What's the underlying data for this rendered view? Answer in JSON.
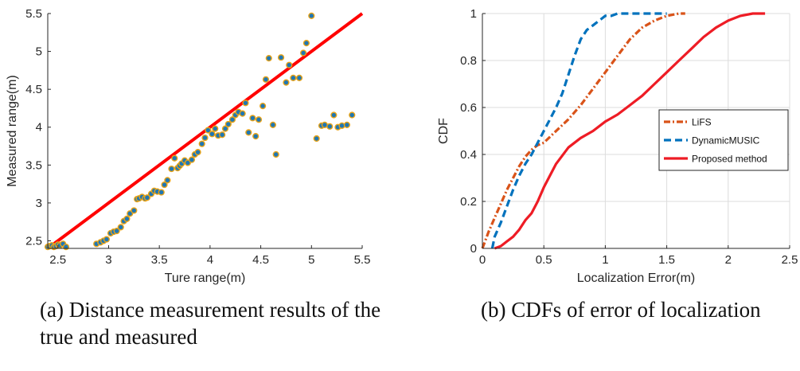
{
  "chart_data": [
    {
      "type": "scatter",
      "title": "",
      "xlabel": "Ture range(m)",
      "ylabel": "Measured range(m)",
      "xlim": [
        2.4,
        5.5
      ],
      "ylim": [
        2.4,
        5.5
      ],
      "xticks": [
        "2.5",
        "3",
        "3.5",
        "4",
        "4.5",
        "5",
        "5.5"
      ],
      "yticks": [
        "2.5",
        "3",
        "3.5",
        "4",
        "4.5",
        "5",
        "5.5"
      ],
      "grid": false,
      "colors": {
        "marker_fill": "#1f77b4",
        "marker_edge": "#e8a317",
        "line": "#ff0000"
      },
      "series": [
        {
          "kind": "points",
          "x": [
            2.4,
            2.42,
            2.44,
            2.46,
            2.48,
            2.5,
            2.52,
            2.55,
            2.58,
            2.88,
            2.92,
            2.95,
            2.98,
            3.02,
            3.05,
            3.08,
            3.12,
            3.15,
            3.18,
            3.21,
            3.25,
            3.28,
            3.3,
            3.33,
            3.36,
            3.38,
            3.42,
            3.45,
            3.48,
            3.52,
            3.55,
            3.58,
            3.62,
            3.65,
            3.68,
            3.7,
            3.72,
            3.75,
            3.78,
            3.82,
            3.85,
            3.88,
            3.92,
            3.95,
            3.98,
            4.02,
            4.05,
            4.08,
            4.12,
            4.15,
            4.18,
            4.22,
            4.25,
            4.28,
            4.32,
            4.35,
            4.38,
            4.42,
            4.45,
            4.48,
            4.52,
            4.55,
            4.58,
            4.62,
            4.65,
            4.7,
            4.75,
            4.78,
            4.82,
            4.88,
            4.92,
            4.95,
            5.0,
            5.05,
            5.1,
            5.13,
            5.18,
            5.22,
            5.26,
            5.3,
            5.35,
            5.4
          ],
          "y": [
            2.42,
            2.43,
            2.44,
            2.42,
            2.43,
            2.45,
            2.44,
            2.46,
            2.42,
            2.46,
            2.48,
            2.5,
            2.52,
            2.6,
            2.62,
            2.63,
            2.68,
            2.76,
            2.79,
            2.86,
            2.9,
            3.05,
            3.06,
            3.08,
            3.06,
            3.07,
            3.12,
            3.16,
            3.15,
            3.14,
            3.24,
            3.3,
            3.45,
            3.59,
            3.46,
            3.49,
            3.52,
            3.56,
            3.53,
            3.57,
            3.64,
            3.67,
            3.78,
            3.86,
            3.96,
            3.91,
            3.98,
            3.89,
            3.9,
            3.98,
            4.04,
            4.1,
            4.16,
            4.2,
            4.18,
            4.32,
            3.93,
            4.12,
            3.88,
            4.1,
            4.28,
            4.63,
            4.91,
            4.03,
            3.64,
            4.92,
            4.59,
            4.82,
            4.65,
            4.65,
            4.98,
            5.11,
            5.47,
            3.85,
            4.02,
            4.03,
            4.01,
            4.16,
            4.0,
            4.02,
            4.03,
            4.16
          ]
        },
        {
          "kind": "reference-line",
          "x": [
            2.4,
            5.5
          ],
          "y": [
            2.4,
            5.5
          ]
        }
      ]
    },
    {
      "type": "line",
      "title": "",
      "xlabel": "Localization Error(m)",
      "ylabel": "CDF",
      "xlim": [
        0,
        2.5
      ],
      "ylim": [
        0,
        1
      ],
      "xticks": [
        "0",
        "0.5",
        "1",
        "1.5",
        "2",
        "2.5"
      ],
      "yticks": [
        "0",
        "0.2",
        "0.4",
        "0.6",
        "0.8",
        "1"
      ],
      "grid": true,
      "legend_position": "right-middle",
      "series": [
        {
          "name": "LiFS",
          "color": "#d95319",
          "style": "dashdot",
          "x": [
            0,
            0.05,
            0.1,
            0.15,
            0.2,
            0.25,
            0.3,
            0.35,
            0.4,
            0.45,
            0.5,
            0.6,
            0.7,
            0.8,
            0.9,
            1.0,
            1.1,
            1.2,
            1.3,
            1.4,
            1.5,
            1.6,
            1.65
          ],
          "y": [
            0,
            0.07,
            0.13,
            0.19,
            0.25,
            0.3,
            0.35,
            0.39,
            0.42,
            0.44,
            0.45,
            0.5,
            0.55,
            0.61,
            0.68,
            0.75,
            0.82,
            0.89,
            0.94,
            0.97,
            0.99,
            1.0,
            1.0
          ]
        },
        {
          "name": "DynamicMUSIC",
          "color": "#0072bd",
          "style": "dashed",
          "x": [
            0.08,
            0.1,
            0.15,
            0.2,
            0.25,
            0.3,
            0.35,
            0.4,
            0.45,
            0.5,
            0.55,
            0.6,
            0.65,
            0.7,
            0.75,
            0.8,
            0.85,
            0.9,
            0.95,
            1.0,
            1.05,
            1.1,
            1.2,
            1.3,
            1.4,
            1.5
          ],
          "y": [
            0,
            0.05,
            0.11,
            0.18,
            0.25,
            0.31,
            0.36,
            0.4,
            0.45,
            0.5,
            0.55,
            0.6,
            0.66,
            0.74,
            0.82,
            0.89,
            0.93,
            0.95,
            0.97,
            0.99,
            0.99,
            1.0,
            1.0,
            1.0,
            1.0,
            1.0
          ]
        },
        {
          "name": "Proposed method",
          "color": "#ee1c25",
          "style": "solid",
          "x": [
            0.1,
            0.15,
            0.2,
            0.25,
            0.3,
            0.35,
            0.4,
            0.45,
            0.5,
            0.6,
            0.7,
            0.8,
            0.9,
            1.0,
            1.1,
            1.2,
            1.3,
            1.4,
            1.5,
            1.6,
            1.7,
            1.8,
            1.9,
            2.0,
            2.1,
            2.2,
            2.3
          ],
          "y": [
            0,
            0.01,
            0.03,
            0.05,
            0.08,
            0.12,
            0.15,
            0.2,
            0.26,
            0.36,
            0.43,
            0.47,
            0.5,
            0.54,
            0.57,
            0.61,
            0.65,
            0.7,
            0.75,
            0.8,
            0.85,
            0.9,
            0.94,
            0.97,
            0.99,
            1.0,
            1.0
          ]
        }
      ]
    }
  ],
  "captions": {
    "a": "(a) Distance measurement results of the true and measured",
    "b": "(b) CDFs of error of localization"
  }
}
